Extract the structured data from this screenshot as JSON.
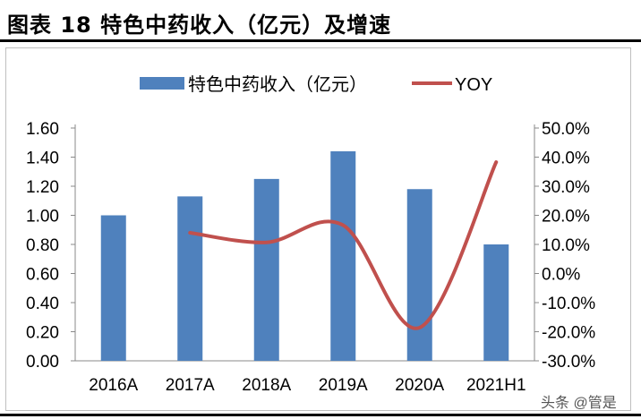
{
  "title": "图表 18 特色中药收入（亿元）及增速",
  "watermark": "头条 @管是",
  "chart_data": {
    "type": "bar+line",
    "categories": [
      "2016A",
      "2017A",
      "2018A",
      "2019A",
      "2020A",
      "2021H1"
    ],
    "series": [
      {
        "name": "特色中药收入（亿元）",
        "type": "bar",
        "axis": "left",
        "color": "#4f81bd",
        "values": [
          1.0,
          1.13,
          1.25,
          1.44,
          1.18,
          0.8
        ]
      },
      {
        "name": "YOY",
        "type": "line",
        "axis": "right",
        "color": "#c0504d",
        "values": [
          null,
          14.0,
          10.7,
          16.6,
          -18.6,
          38.3
        ]
      }
    ],
    "left_axis": {
      "ylim": [
        0,
        1.6
      ],
      "ticks": [
        "0.00",
        "0.20",
        "0.40",
        "0.60",
        "0.80",
        "1.00",
        "1.20",
        "1.40",
        "1.60"
      ]
    },
    "right_axis": {
      "ylim": [
        -30,
        50
      ],
      "ticks": [
        "-30.0%",
        "-20.0%",
        "-10.0%",
        "0.0%",
        "10.0%",
        "20.0%",
        "30.0%",
        "40.0%",
        "50.0%"
      ]
    },
    "legend": "top",
    "grid": false
  }
}
